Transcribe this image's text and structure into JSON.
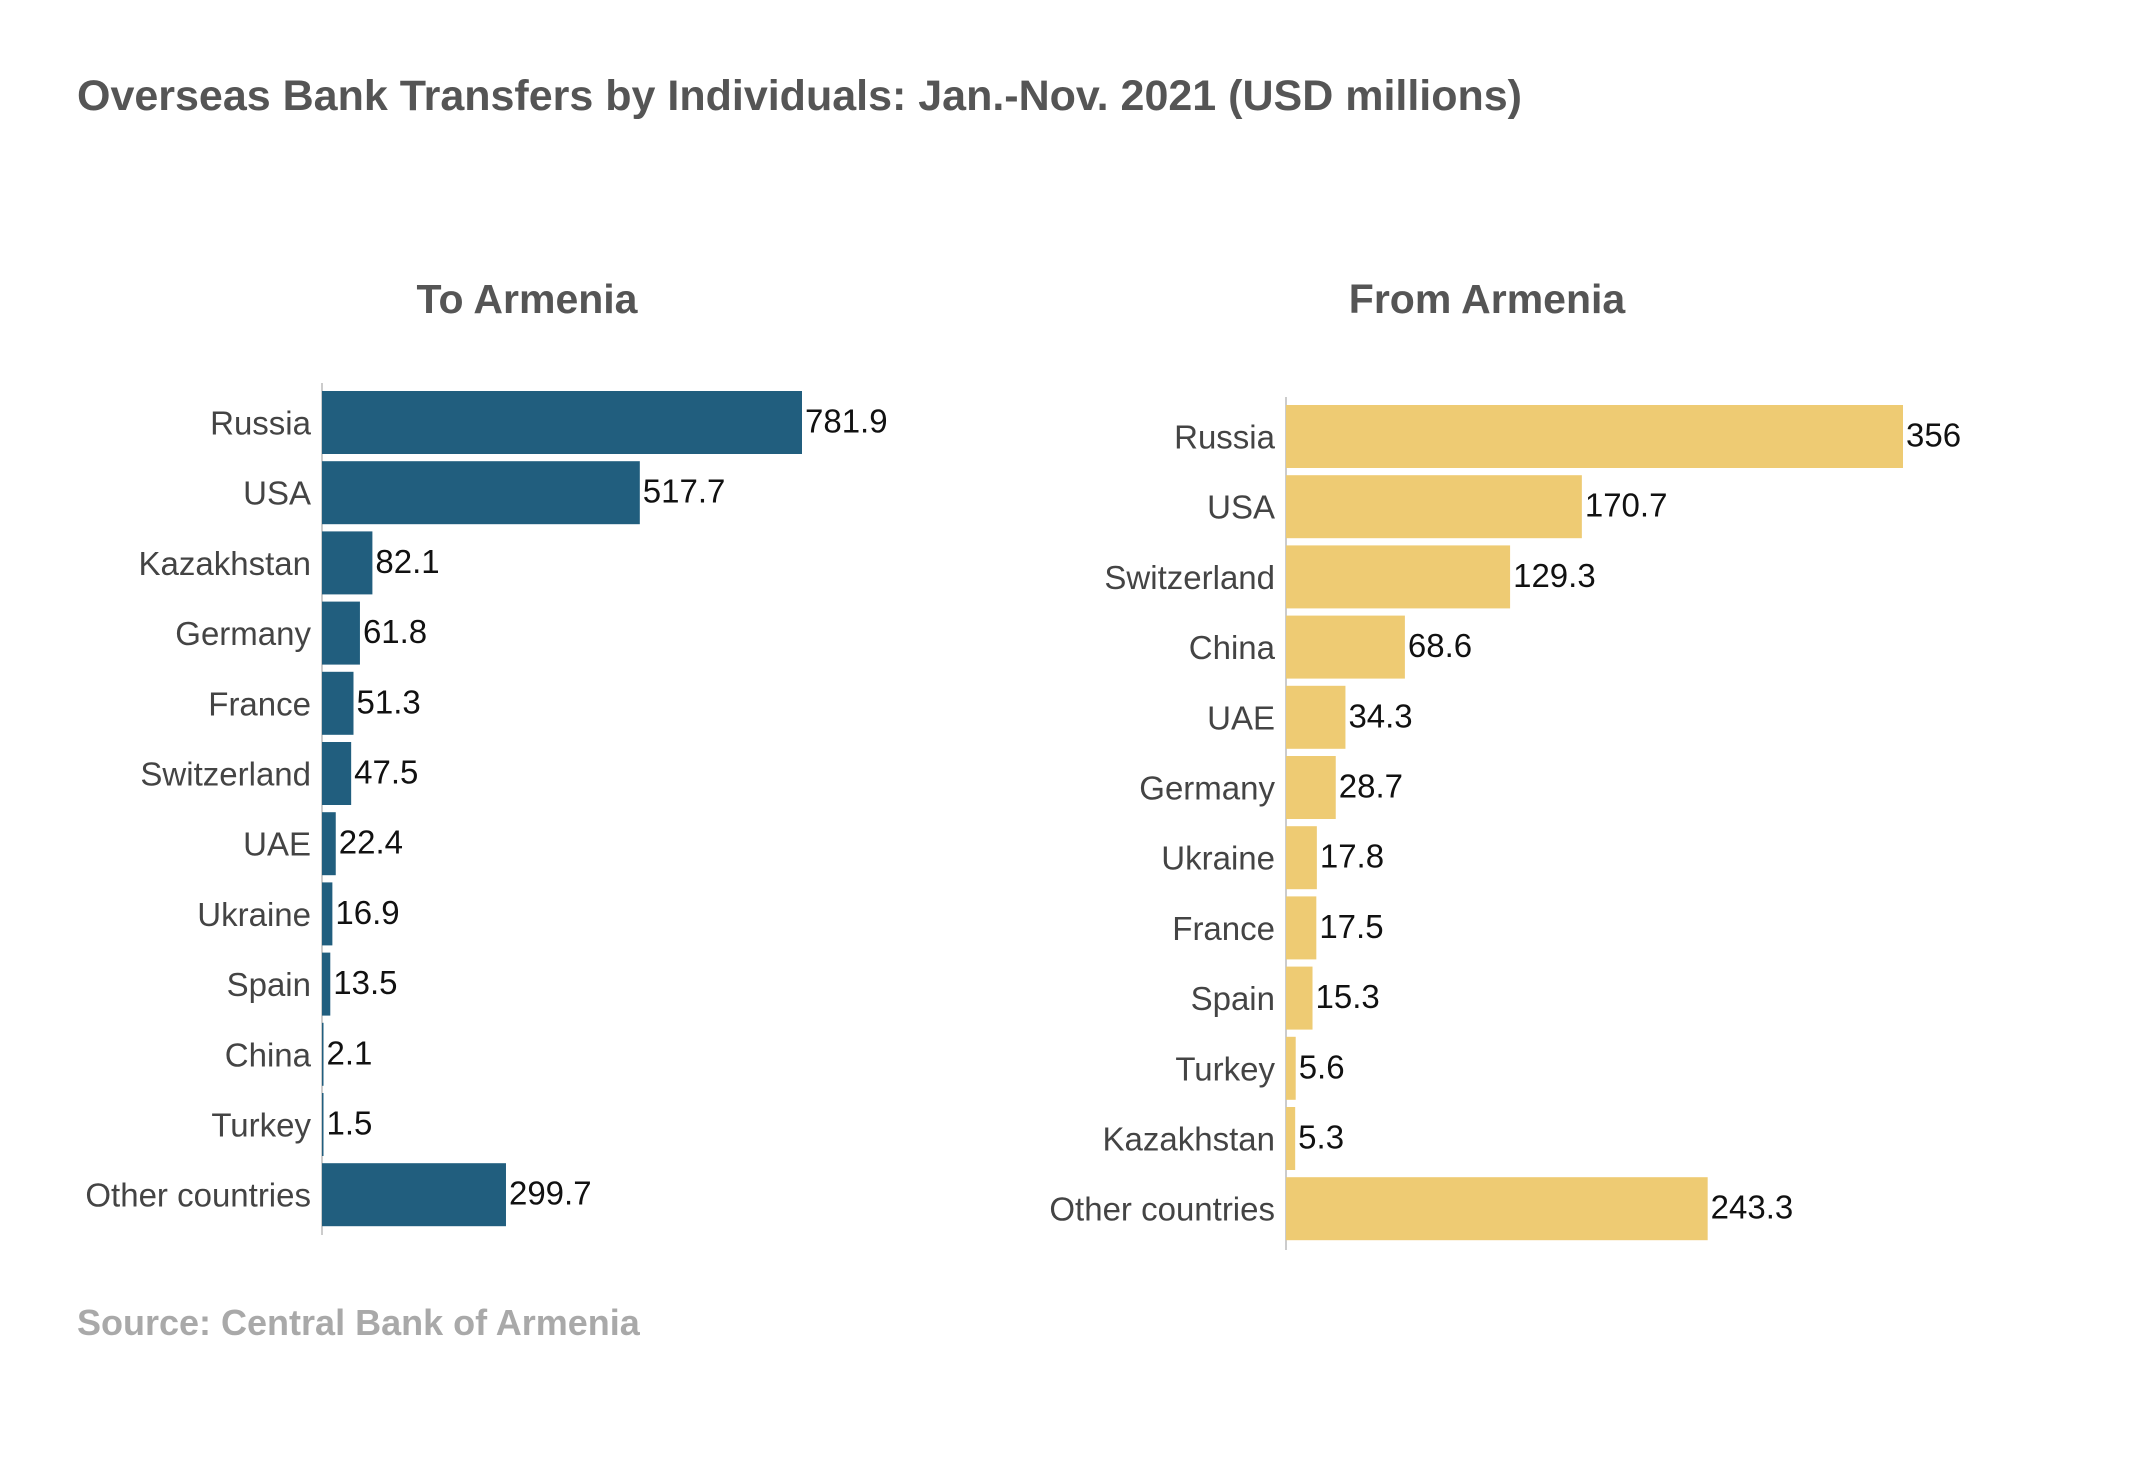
{
  "title": "Overseas Bank Transfers by Individuals: Jan.-Nov. 2021 (USD millions)",
  "source": "Source: Central Bank of Armenia",
  "colors": {
    "to_armenia": "#215e7e",
    "from_armenia": "#eecb73",
    "axis": "#cccccc"
  },
  "chart_data": [
    {
      "type": "bar",
      "orientation": "horizontal",
      "title": "To Armenia",
      "categories": [
        "Russia",
        "USA",
        "Kazakhstan",
        "Germany",
        "France",
        "Switzerland",
        "UAE",
        "Ukraine",
        "Spain",
        "China",
        "Turkey",
        "Other countries"
      ],
      "values": [
        781.9,
        517.7,
        82.1,
        61.8,
        51.3,
        47.5,
        22.4,
        16.9,
        13.5,
        2.1,
        1.5,
        299.7
      ],
      "value_labels": [
        "781.9",
        "517.7",
        "82.1",
        "61.8",
        "51.3",
        "47.5",
        "22.4",
        "16.9",
        "13.5",
        "2.1",
        "1.5",
        "299.7"
      ],
      "xlim": [
        0,
        781.9
      ],
      "grid": false,
      "legend": "none"
    },
    {
      "type": "bar",
      "orientation": "horizontal",
      "title": "From Armenia",
      "categories": [
        "Russia",
        "USA",
        "Switzerland",
        "China",
        "UAE",
        "Germany",
        "Ukraine",
        "France",
        "Spain",
        "Turkey",
        "Kazakhstan",
        "Other countries"
      ],
      "values": [
        356,
        170.7,
        129.3,
        68.6,
        34.3,
        28.7,
        17.8,
        17.5,
        15.3,
        5.6,
        5.3,
        243.3
      ],
      "value_labels": [
        "356",
        "170.7",
        "129.3",
        "68.6",
        "34.3",
        "28.7",
        "17.8",
        "17.5",
        "15.3",
        "5.6",
        "5.3",
        "243.3"
      ],
      "xlim": [
        0,
        356
      ],
      "grid": false,
      "legend": "none"
    }
  ]
}
